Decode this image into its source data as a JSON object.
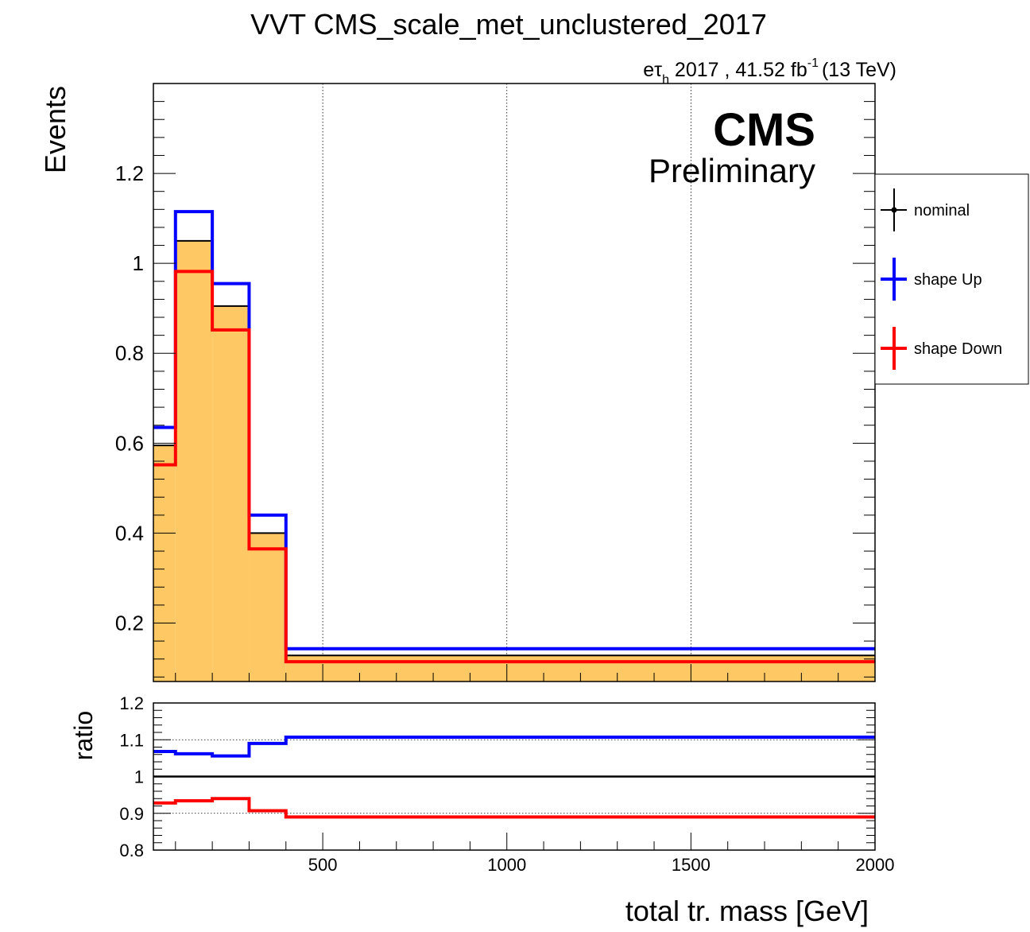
{
  "chart_data": [
    {
      "type": "histogram",
      "title": "VVT CMS_scale_met_unclustered_2017",
      "lumi": {
        "prefix": "e",
        "tau": "τ",
        "sub": "h",
        "mid": " 2017 , 41.52 fb",
        "sup": "-1",
        "suffix": "(13 TeV)"
      },
      "cms_label": "CMS",
      "cms_sub": "Preliminary",
      "ylabel": "Events",
      "xlabel": "total tr. mass [GeV]",
      "xlim": [
        40,
        2000
      ],
      "ylim": [
        0.07,
        1.4
      ],
      "yticks": [
        0.2,
        0.4,
        0.6,
        0.8,
        1.0,
        1.2
      ],
      "ytick_labels": [
        "0.2",
        "0.4",
        "0.6",
        "0.8",
        "1",
        "1.2"
      ],
      "xgrid": [
        500,
        1000,
        1500
      ],
      "bin_edges": [
        40,
        100,
        200,
        300,
        400,
        2000
      ],
      "series": [
        {
          "name": "nominal",
          "color": "#000000",
          "fill": "#fec864",
          "values": [
            0.595,
            1.05,
            0.905,
            0.4,
            0.128
          ]
        },
        {
          "name": "shape Up",
          "color": "#0000ff",
          "values": [
            0.635,
            1.115,
            0.955,
            0.44,
            0.143
          ]
        },
        {
          "name": "shape Down",
          "color": "#ff0000",
          "values": [
            0.552,
            0.982,
            0.852,
            0.365,
            0.114
          ]
        }
      ],
      "legend": {
        "entries": [
          "nominal",
          "shape Up",
          "shape Down"
        ],
        "placement": "right"
      }
    },
    {
      "type": "ratio",
      "ylabel": "ratio",
      "xlabel": "total tr. mass [GeV]",
      "xlim": [
        40,
        2000
      ],
      "ylim": [
        0.8,
        1.2
      ],
      "yticks": [
        0.8,
        0.9,
        1.0,
        1.1,
        1.2
      ],
      "ytick_labels": [
        "0.8",
        "0.9",
        "1",
        "1.1",
        "1.2"
      ],
      "xticks": [
        500,
        1000,
        1500,
        2000
      ],
      "xtick_labels": [
        "500",
        "1000",
        "1500",
        "2000"
      ],
      "bin_edges": [
        40,
        100,
        200,
        300,
        400,
        2000
      ],
      "series": [
        {
          "name": "shape Up",
          "color": "#0000ff",
          "values": [
            1.068,
            1.062,
            1.056,
            1.09,
            1.107
          ]
        },
        {
          "name": "shape Down",
          "color": "#ff0000",
          "values": [
            0.928,
            0.934,
            0.94,
            0.907,
            0.89
          ]
        }
      ],
      "reference": 1.0
    }
  ]
}
